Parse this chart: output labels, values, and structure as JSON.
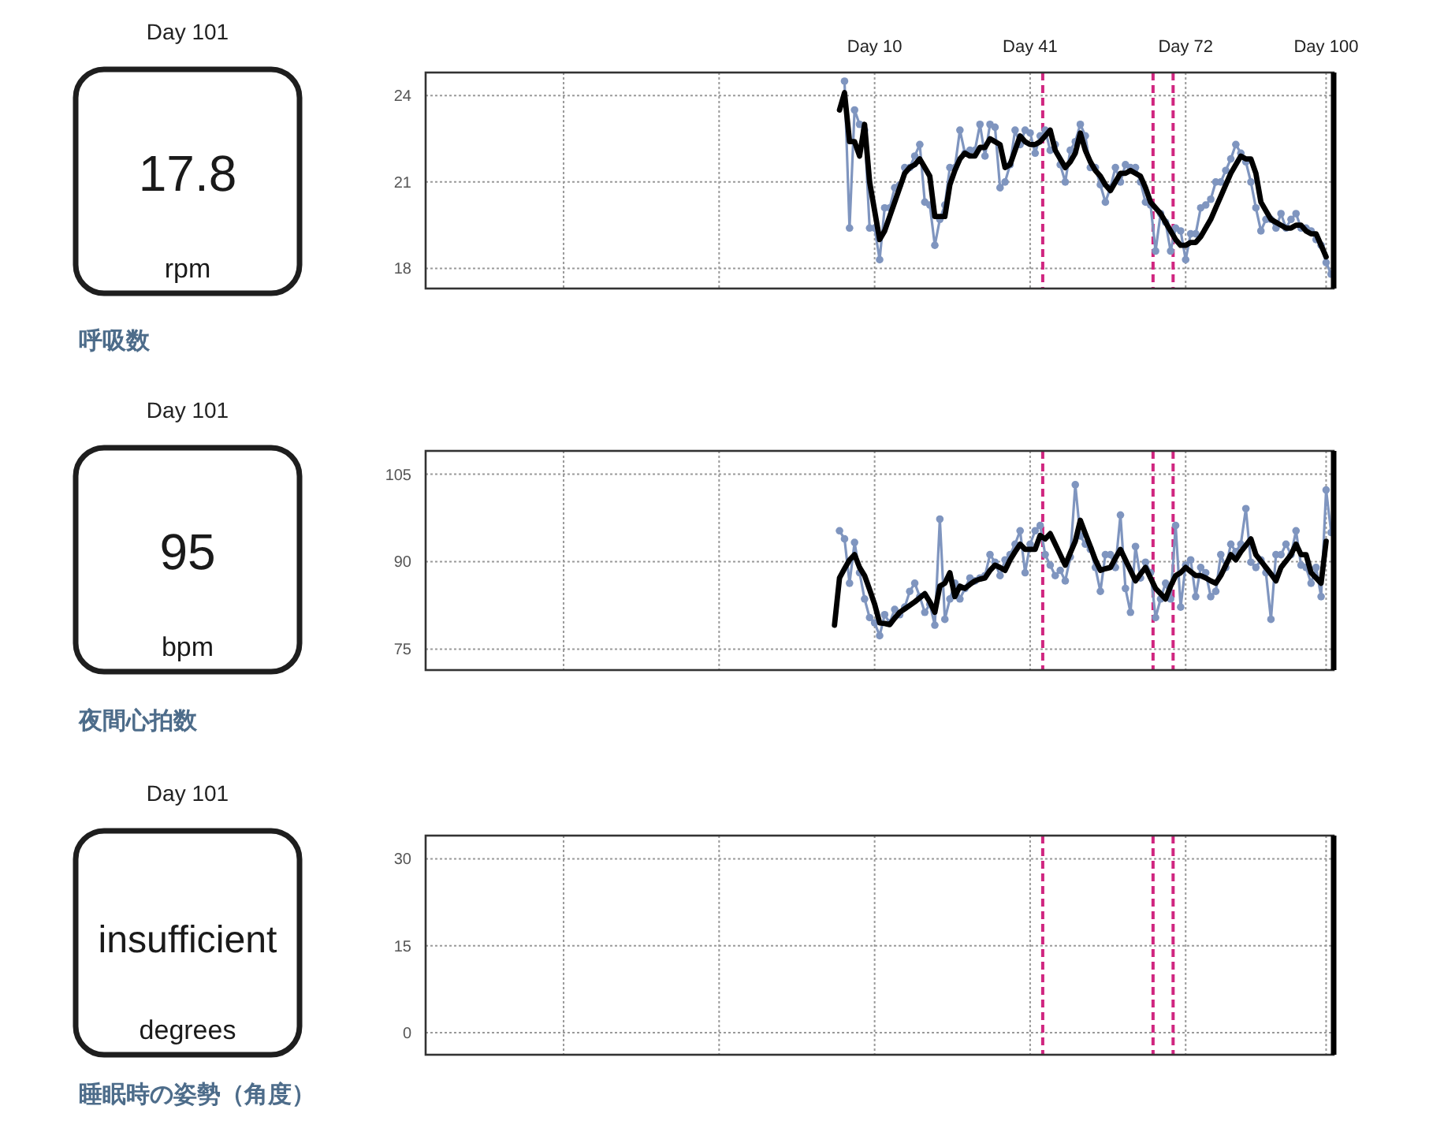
{
  "chart_data": [
    {
      "type": "other",
      "title": "呼吸数",
      "subtitle": "Day 101",
      "annotations": [
        "17.8",
        "rpm"
      ]
    },
    {
      "type": "line",
      "categories": [
        null,
        null,
        null,
        null,
        null,
        null,
        null,
        null,
        null,
        null,
        null,
        null,
        null,
        null,
        null,
        null,
        null,
        null,
        null,
        null,
        null,
        null,
        null,
        null,
        null,
        null,
        null,
        null,
        null,
        null,
        null,
        null,
        null,
        null,
        null,
        null,
        null,
        null,
        null,
        null,
        null,
        null,
        null,
        null,
        null,
        null,
        null,
        null,
        null,
        null,
        null,
        null,
        null,
        null,
        null,
        null,
        null,
        null,
        null,
        null,
        null,
        null,
        null,
        null,
        null,
        null,
        null,
        null,
        null,
        null,
        null,
        null,
        null,
        null,
        null,
        null,
        null,
        null,
        null,
        null,
        null,
        null,
        null,
        null,
        null,
        null,
        null,
        null,
        null,
        "Day 10",
        null,
        null,
        null,
        null,
        null,
        null,
        null,
        null,
        null,
        null,
        null,
        null,
        null,
        null,
        null,
        null,
        null,
        null,
        null,
        null,
        null,
        null,
        null,
        null,
        null,
        null,
        null,
        null,
        null,
        null,
        "Day 41",
        null,
        null,
        null,
        null,
        null,
        null,
        null,
        null,
        null,
        null,
        null,
        null,
        null,
        null,
        null,
        null,
        null,
        null,
        null,
        null,
        null,
        null,
        null,
        null,
        null,
        null,
        null,
        null,
        null,
        null,
        "Day 72",
        null,
        null,
        null,
        null,
        null,
        null,
        null,
        null,
        null,
        null,
        null,
        null,
        null,
        null,
        null,
        null,
        null,
        null,
        null,
        null,
        null,
        null,
        null,
        null,
        null,
        null,
        null,
        "Day 100",
        null
      ],
      "ylim": [
        17.3,
        24.8
      ],
      "yticks": [
        18,
        21,
        24
      ],
      "grid": true,
      "series": [
        {
          "color": "#7f95bf",
          "marker": "circle",
          "values": [
            null,
            null,
            null,
            null,
            null,
            null,
            null,
            null,
            null,
            null,
            null,
            null,
            null,
            null,
            null,
            null,
            null,
            null,
            null,
            null,
            null,
            null,
            null,
            null,
            null,
            null,
            null,
            null,
            null,
            null,
            null,
            null,
            null,
            null,
            null,
            null,
            null,
            null,
            null,
            null,
            null,
            null,
            null,
            null,
            null,
            null,
            null,
            null,
            null,
            null,
            null,
            null,
            null,
            null,
            null,
            null,
            null,
            null,
            null,
            null,
            null,
            null,
            null,
            null,
            null,
            null,
            null,
            null,
            null,
            null,
            null,
            null,
            null,
            null,
            null,
            null,
            null,
            null,
            null,
            null,
            null,
            null,
            null,
            24.5,
            19.4,
            23.5,
            23.0,
            22.8,
            19.4,
            19.4,
            18.3,
            20.1,
            20.1,
            20.8,
            20.9,
            21.5,
            21.5,
            21.9,
            22.3,
            20.3,
            20.2,
            18.8,
            19.7,
            20.2,
            21.5,
            21.5,
            22.8,
            22.0,
            22.1,
            22.1,
            23.0,
            21.9,
            23.0,
            22.9,
            20.8,
            21.0,
            21.6,
            22.8,
            22.3,
            22.8,
            22.7,
            22.0,
            22.6,
            22.8,
            22.1,
            22.3,
            21.6,
            21.0,
            22.1,
            22.4,
            23.0,
            22.6,
            21.5,
            21.5,
            20.9,
            20.3,
            20.8,
            21.5,
            21.0,
            21.6,
            21.5,
            21.5,
            21.0,
            20.3,
            20.2,
            18.6,
            19.9,
            19.6,
            18.6,
            19.4,
            19.3,
            18.3,
            19.2,
            19.2,
            20.1,
            20.2,
            20.4,
            21.0,
            21.0,
            21.4,
            21.8,
            22.3,
            22.0,
            21.7,
            21.0,
            20.1,
            19.3,
            19.7,
            19.7,
            19.4,
            19.9,
            19.4,
            19.7,
            19.9,
            19.4,
            19.4,
            19.3,
            19.0,
            18.8,
            18.2,
            17.8
          ]
        },
        {
          "color": "#000000",
          "values": [
            null,
            null,
            null,
            null,
            null,
            null,
            null,
            null,
            null,
            null,
            null,
            null,
            null,
            null,
            null,
            null,
            null,
            null,
            null,
            null,
            null,
            null,
            null,
            null,
            null,
            null,
            null,
            null,
            null,
            null,
            null,
            null,
            null,
            null,
            null,
            null,
            null,
            null,
            null,
            null,
            null,
            null,
            null,
            null,
            null,
            null,
            null,
            null,
            null,
            null,
            null,
            null,
            null,
            null,
            null,
            null,
            null,
            null,
            null,
            null,
            null,
            null,
            null,
            null,
            null,
            null,
            null,
            null,
            null,
            null,
            null,
            null,
            null,
            null,
            null,
            null,
            null,
            null,
            null,
            null,
            null,
            null,
            23.5,
            24.1,
            22.4,
            22.4,
            21.9,
            23.0,
            21.0,
            20.0,
            19.0,
            19.3,
            19.8,
            20.3,
            20.8,
            21.3,
            21.5,
            21.6,
            21.8,
            21.5,
            21.2,
            19.8,
            19.8,
            19.8,
            20.9,
            21.4,
            21.8,
            22.0,
            21.9,
            21.9,
            22.2,
            22.2,
            22.5,
            22.4,
            22.3,
            21.5,
            21.6,
            22.1,
            22.6,
            22.4,
            22.3,
            22.3,
            22.4,
            22.6,
            22.8,
            22.1,
            21.8,
            21.5,
            21.7,
            22.0,
            22.7,
            22.1,
            21.7,
            21.4,
            21.2,
            20.9,
            20.7,
            21.0,
            21.3,
            21.3,
            21.4,
            21.3,
            21.2,
            20.8,
            20.3,
            20.1,
            19.9,
            19.6,
            19.3,
            19.0,
            18.8,
            18.8,
            18.9,
            18.9,
            19.1,
            19.4,
            19.7,
            20.1,
            20.5,
            20.9,
            21.3,
            21.6,
            21.9,
            21.8,
            21.8,
            21.3,
            20.3,
            20.0,
            19.7,
            19.6,
            19.5,
            19.4,
            19.4,
            19.5,
            19.5,
            19.3,
            19.2,
            19.2,
            18.8,
            18.4,
            null
          ]
        }
      ]
    },
    {
      "type": "other",
      "title": "夜間心拍数",
      "subtitle": "Day 101",
      "annotations": [
        "95",
        "bpm"
      ]
    },
    {
      "type": "line",
      "categories": [
        null,
        null,
        null,
        null,
        null,
        null,
        null,
        null,
        null,
        null,
        null,
        null,
        null,
        null,
        null,
        null,
        null,
        null,
        null,
        null,
        null,
        null,
        null,
        null,
        null,
        null,
        null,
        null,
        null,
        null,
        null,
        null,
        null,
        null,
        null,
        null,
        null,
        null,
        null,
        null,
        null,
        null,
        null,
        null,
        null,
        null,
        null,
        null,
        null,
        null,
        null,
        null,
        null,
        null,
        null,
        null,
        null,
        null,
        null,
        null,
        null,
        null,
        null,
        null,
        null,
        null,
        null,
        null,
        null,
        null,
        null,
        null,
        null,
        null,
        null,
        null,
        null,
        null,
        null,
        null,
        null,
        null,
        null,
        null,
        null,
        null,
        null,
        null,
        null,
        null,
        null,
        null,
        null,
        null,
        null,
        null,
        null,
        null,
        null,
        null,
        null,
        null,
        null,
        null,
        null,
        null,
        null,
        null,
        null,
        null,
        null,
        null,
        null,
        null,
        null,
        null,
        null,
        null,
        null,
        null,
        null,
        null,
        null,
        null,
        null,
        null,
        null,
        null,
        null,
        null,
        null,
        null,
        null,
        null,
        null,
        null,
        null,
        null,
        null,
        null,
        null,
        null,
        null,
        null,
        null,
        null,
        null,
        null,
        null,
        null,
        null,
        null,
        null,
        null,
        null,
        null,
        null,
        null,
        null,
        null,
        null,
        null,
        null,
        null,
        null,
        null,
        null,
        null,
        null,
        null,
        null,
        null,
        null,
        null,
        null,
        null,
        null,
        null,
        null,
        null,
        null
      ],
      "ylim": [
        71.4,
        109
      ],
      "yticks": [
        75,
        90,
        105
      ],
      "grid": true,
      "tick_labels": "y",
      "series": [
        {
          "color": "#7f95bf",
          "marker": "circle",
          "values": [
            null,
            null,
            null,
            null,
            null,
            null,
            null,
            null,
            null,
            null,
            null,
            null,
            null,
            null,
            null,
            null,
            null,
            null,
            null,
            null,
            null,
            null,
            null,
            null,
            null,
            null,
            null,
            null,
            null,
            null,
            null,
            null,
            null,
            null,
            null,
            null,
            null,
            null,
            null,
            null,
            null,
            null,
            null,
            null,
            null,
            null,
            null,
            null,
            null,
            null,
            null,
            null,
            null,
            null,
            null,
            null,
            null,
            null,
            null,
            null,
            null,
            null,
            null,
            null,
            null,
            null,
            null,
            null,
            null,
            null,
            null,
            null,
            null,
            null,
            null,
            null,
            null,
            null,
            null,
            null,
            null,
            null,
            95.3,
            93.9,
            86.3,
            93.3,
            88.1,
            83.6,
            80.4,
            79.5,
            77.3,
            80.9,
            79.5,
            81.8,
            80.9,
            82.2,
            84.9,
            86.3,
            84.0,
            81.3,
            82.7,
            79.1,
            97.3,
            80.1,
            83.6,
            86.3,
            83.6,
            85.4,
            87.2,
            86.7,
            87.2,
            87.6,
            91.2,
            89.9,
            87.6,
            90.3,
            91.2,
            93.0,
            95.3,
            88.1,
            93.0,
            95.3,
            96.2,
            91.2,
            89.4,
            87.6,
            88.5,
            86.7,
            90.8,
            103.2,
            94.4,
            93.0,
            92.1,
            89.0,
            84.9,
            91.2,
            91.2,
            89.0,
            98.0,
            85.4,
            81.3,
            92.6,
            87.2,
            89.9,
            88.1,
            80.4,
            83.6,
            86.3,
            83.6,
            96.2,
            82.2,
            89.4,
            90.3,
            84.0,
            89.0,
            88.1,
            84.0,
            84.9,
            91.2,
            89.0,
            93.0,
            91.7,
            93.0,
            99.1,
            89.9,
            89.0,
            90.3,
            88.1,
            80.1,
            91.2,
            91.2,
            93.0,
            91.2,
            95.3,
            89.4,
            89.0,
            86.3,
            89.0,
            84.0,
            102.3,
            95
          ]
        },
        {
          "color": "#000000",
          "values": [
            null,
            null,
            null,
            null,
            null,
            null,
            null,
            null,
            null,
            null,
            null,
            null,
            null,
            null,
            null,
            null,
            null,
            null,
            null,
            null,
            null,
            null,
            null,
            null,
            null,
            null,
            null,
            null,
            null,
            null,
            null,
            null,
            null,
            null,
            null,
            null,
            null,
            null,
            null,
            null,
            null,
            null,
            null,
            null,
            null,
            null,
            null,
            null,
            null,
            null,
            null,
            null,
            null,
            null,
            null,
            null,
            null,
            null,
            null,
            null,
            null,
            null,
            null,
            null,
            null,
            null,
            null,
            null,
            null,
            null,
            null,
            null,
            null,
            null,
            null,
            null,
            null,
            null,
            null,
            null,
            null,
            79.1,
            87.2,
            88.8,
            90.3,
            91.2,
            89.0,
            87.6,
            85.2,
            82.7,
            79.5,
            79.4,
            79.2,
            80.3,
            81.3,
            81.9,
            82.5,
            83.1,
            83.8,
            84.5,
            83.1,
            81.3,
            85.8,
            86.3,
            88.1,
            84.0,
            85.8,
            85.4,
            86.1,
            86.7,
            87.0,
            87.2,
            88.5,
            89.4,
            89.0,
            88.5,
            90.3,
            91.7,
            93.0,
            92.1,
            92.1,
            92.1,
            94.5,
            93.9,
            94.8,
            93.0,
            91.2,
            89.4,
            91.5,
            93.5,
            97.1,
            94.8,
            92.6,
            90.3,
            88.5,
            88.8,
            89.0,
            90.6,
            92.1,
            90.3,
            88.5,
            86.7,
            87.9,
            89.0,
            87.2,
            85.4,
            84.5,
            83.6,
            85.8,
            87.6,
            88.1,
            89.0,
            88.3,
            87.6,
            87.6,
            87.2,
            86.7,
            86.3,
            87.6,
            89.4,
            91.2,
            90.3,
            91.7,
            92.8,
            93.9,
            91.2,
            90.1,
            89.0,
            87.9,
            86.7,
            89.0,
            90.1,
            91.2,
            93.0,
            91.2,
            91.2,
            88.1,
            87.2,
            86.3,
            93.5,
            null
          ]
        }
      ]
    },
    {
      "type": "other",
      "title": "睡眠時の姿勢（角度）",
      "subtitle": "Day 101",
      "annotations": [
        "insufficient",
        "degrees"
      ]
    },
    {
      "type": "line",
      "categories": [
        null,
        null,
        null,
        null,
        null,
        null,
        null,
        null,
        null,
        null,
        null,
        null,
        null,
        null,
        null,
        null,
        null,
        null,
        null,
        null,
        null,
        null,
        null,
        null,
        null,
        null,
        null,
        null,
        null,
        null,
        null,
        null,
        null,
        null,
        null,
        null,
        null,
        null,
        null,
        null,
        null,
        null,
        null,
        null,
        null,
        null,
        null,
        null,
        null,
        null,
        null,
        null,
        null,
        null,
        null,
        null,
        null,
        null,
        null,
        null,
        null,
        null,
        null,
        null,
        null,
        null,
        null,
        null,
        null,
        null,
        null,
        null,
        null,
        null,
        null,
        null,
        null,
        null,
        null,
        null,
        null,
        null,
        null,
        null,
        null,
        null,
        null,
        null,
        null,
        null,
        null,
        null,
        null,
        null,
        null,
        null,
        null,
        null,
        null,
        null,
        null,
        null,
        null,
        null,
        null,
        null,
        null,
        null,
        null,
        null,
        null,
        null,
        null,
        null,
        null,
        null,
        null,
        null,
        null,
        null,
        null,
        null,
        null,
        null,
        null,
        null,
        null,
        null,
        null,
        null,
        null,
        null,
        null,
        null,
        null,
        null,
        null,
        null,
        null,
        null,
        null,
        null,
        null,
        null,
        null,
        null,
        null,
        null,
        null,
        null,
        null,
        null,
        null,
        null,
        null,
        null,
        null,
        null,
        null,
        null,
        null,
        null,
        null,
        null,
        null,
        null,
        null,
        null,
        null,
        null,
        null,
        null,
        null,
        null,
        null,
        null,
        null,
        null,
        null,
        null,
        null
      ],
      "ylim": [
        -3.8,
        34
      ],
      "yticks": [
        0,
        15,
        30
      ],
      "grid": true,
      "tick_labels": "y"
    }
  ]
}
